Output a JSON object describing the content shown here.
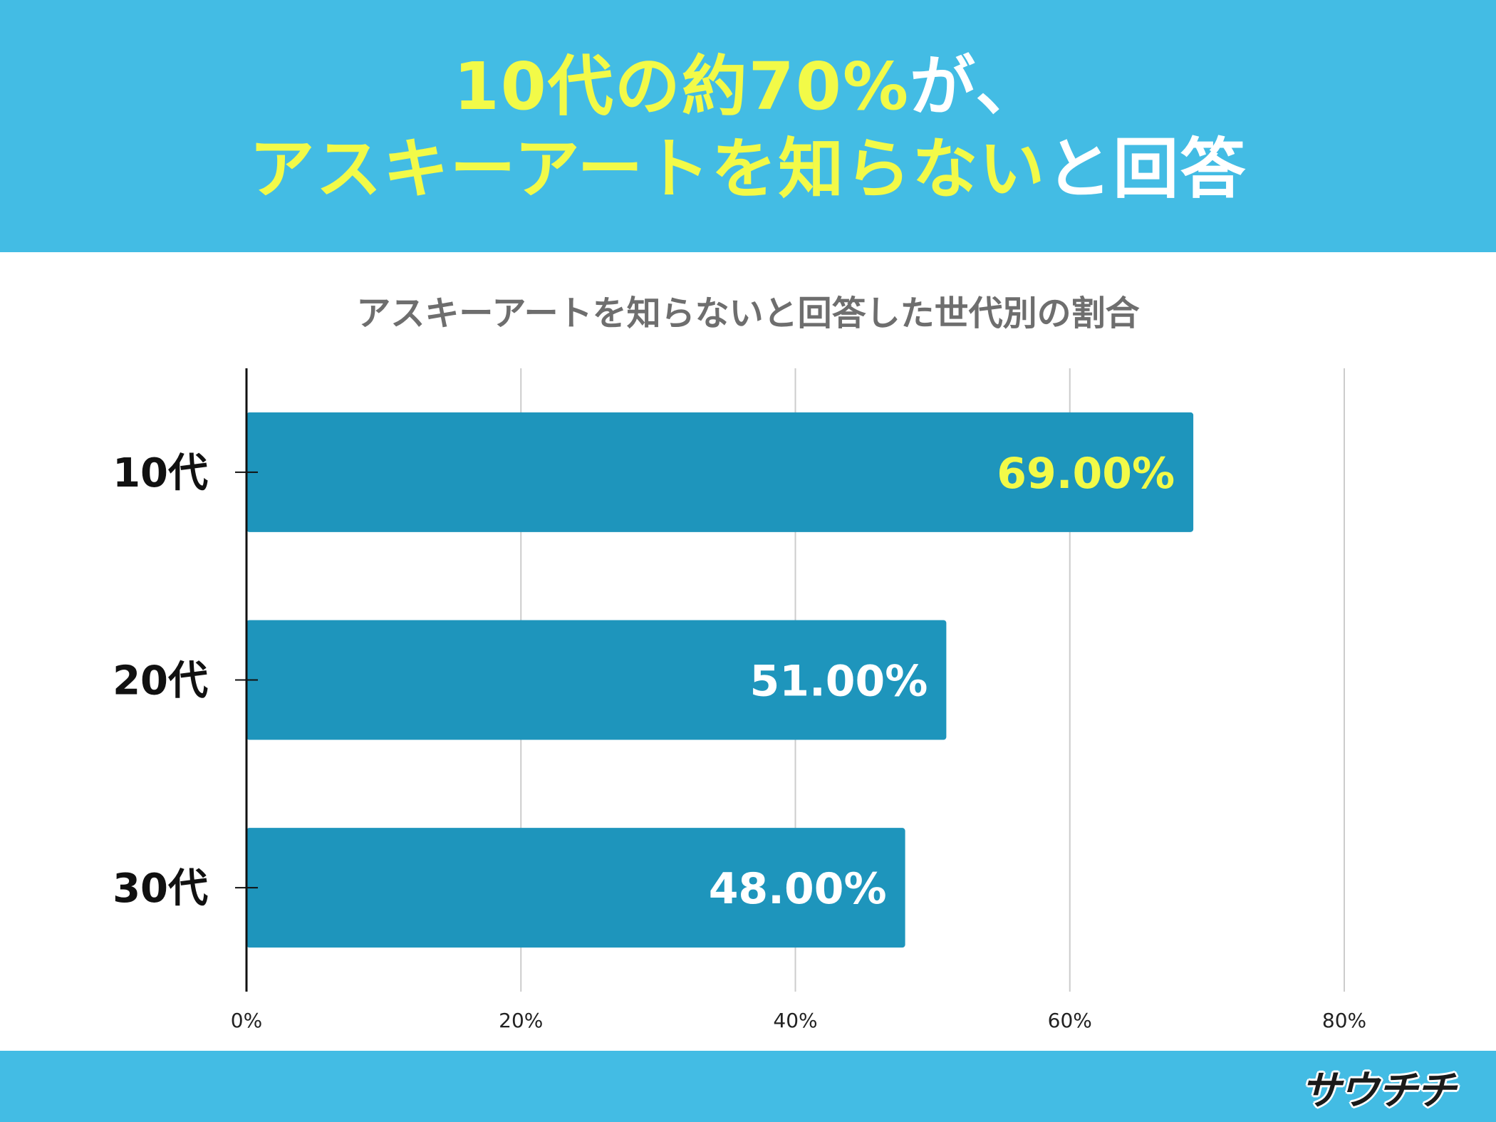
{
  "headline": {
    "line1_highlight": "10代の約70%",
    "line1_rest": "が、",
    "line2_highlight": "アスキーアートを知らない",
    "line2_rest": "と回答"
  },
  "colors": {
    "header_bg": "#43bce4",
    "highlight": "#f2fa48",
    "bar": "#1e95bc",
    "top_value_label": "#f2fa48",
    "value_label": "#ffffff"
  },
  "chart_data": {
    "type": "bar",
    "orientation": "horizontal",
    "title": "アスキーアートを知らないと回答した世代別の割合",
    "categories": [
      "10代",
      "20代",
      "30代"
    ],
    "values": [
      69,
      51,
      48
    ],
    "value_labels": [
      "69.00%",
      "51.00%",
      "48.00%"
    ],
    "xlim": [
      0,
      80
    ],
    "x_ticks": [
      "0%",
      "20%",
      "40%",
      "60%",
      "80%"
    ],
    "xlabel": "",
    "ylabel": "",
    "grid": true,
    "legend": "none"
  },
  "footer": {
    "logo_text": "サウチチ",
    "logo_icon": "bird-helmet-icon"
  }
}
